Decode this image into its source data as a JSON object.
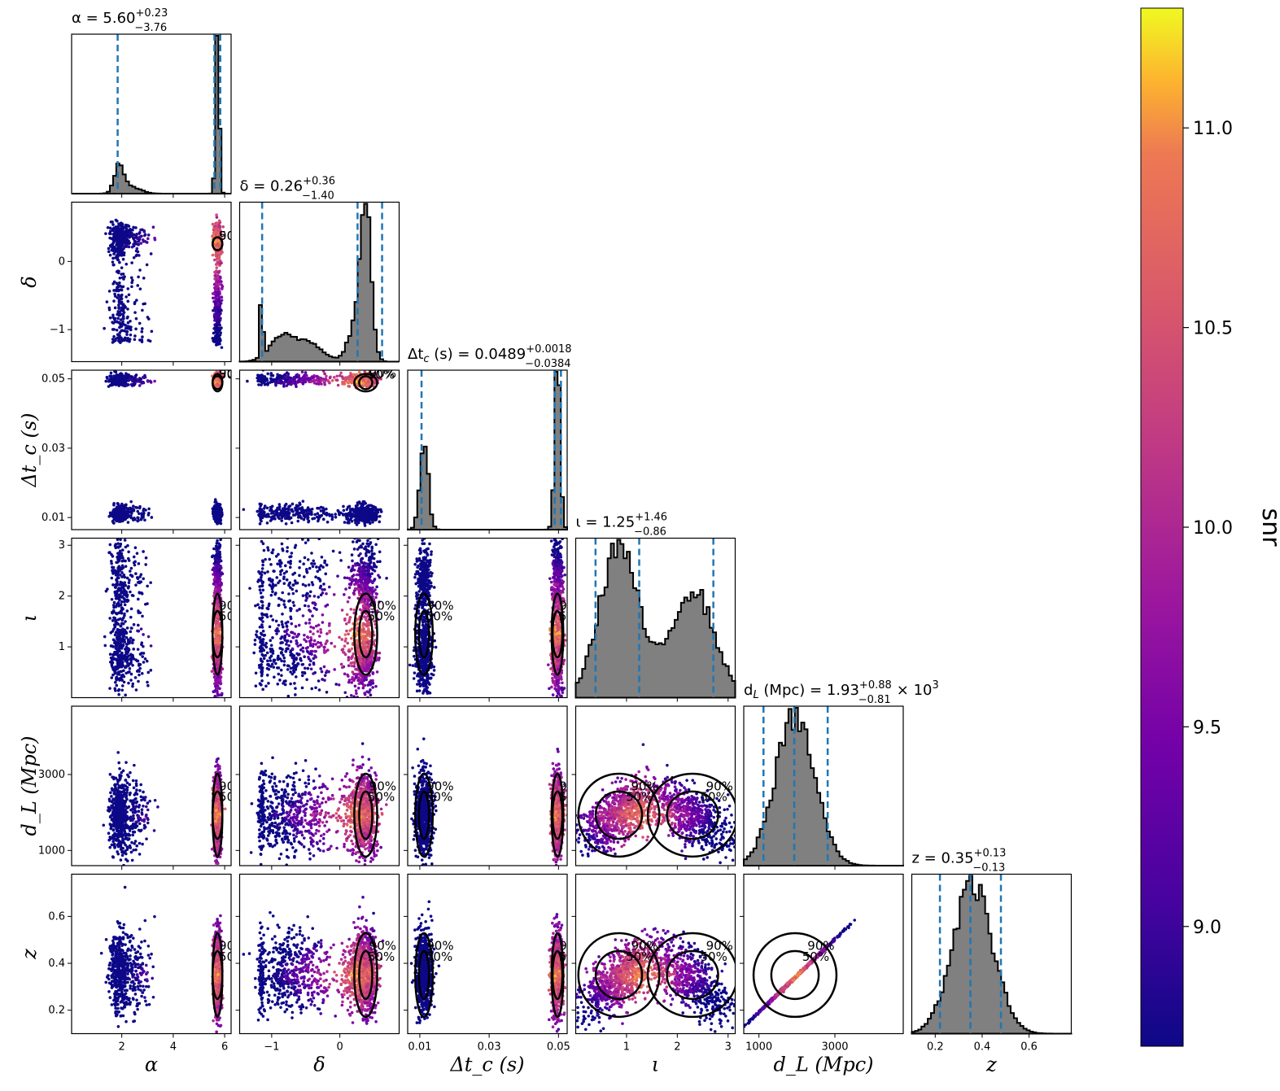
{
  "chart_data": {
    "type": "corner",
    "parameters": [
      {
        "key": "alpha",
        "label": "α",
        "range": [
          0.05,
          6.25
        ],
        "ticks": [
          {
            "v": 2,
            "t": "2"
          },
          {
            "v": 4,
            "t": "4"
          },
          {
            "v": 6,
            "t": "6"
          }
        ],
        "title": "α = 5.60",
        "title_up": "+0.23",
        "title_lo": "−3.76",
        "title_tail": "",
        "median": 5.6,
        "lo": 1.84,
        "hi": 5.83,
        "modes": [
          {
            "c": 1.9,
            "s": 0.18,
            "w": 0.28
          },
          {
            "c": 2.4,
            "s": 0.35,
            "w": 0.12
          },
          {
            "c": 5.72,
            "s": 0.07,
            "w": 0.6
          }
        ]
      },
      {
        "key": "delta",
        "label": "δ",
        "range": [
          -1.47,
          0.87
        ],
        "ticks": [
          {
            "v": -1,
            "t": "−1"
          },
          {
            "v": 0,
            "t": "0"
          }
        ],
        "title": "δ = 0.26",
        "title_up": "+0.36",
        "title_lo": "−1.40",
        "title_tail": "",
        "median": 0.26,
        "lo": -1.14,
        "hi": 0.62,
        "modes": [
          {
            "c": -1.15,
            "s": 0.02,
            "w": 0.06
          },
          {
            "c": -0.85,
            "s": 0.18,
            "w": 0.17
          },
          {
            "c": -0.45,
            "s": 0.2,
            "w": 0.15
          },
          {
            "c": 0.38,
            "s": 0.08,
            "w": 0.5
          },
          {
            "c": 0.2,
            "s": 0.1,
            "w": 0.12
          }
        ]
      },
      {
        "key": "dtc",
        "label": "Δt_c (s)",
        "range": [
          0.0065,
          0.0525
        ],
        "ticks": [
          {
            "v": 0.01,
            "t": "0.01"
          },
          {
            "v": 0.03,
            "t": "0.03"
          },
          {
            "v": 0.05,
            "t": "0.05"
          }
        ],
        "title": "Δt",
        "title_up": "+0.0018",
        "title_lo": "−0.0384",
        "title_tail": "= 0.0489",
        "median": 0.0489,
        "lo": 0.0105,
        "hi": 0.0507,
        "modes": [
          {
            "c": 0.0112,
            "s": 0.0012,
            "w": 0.45
          },
          {
            "c": 0.0497,
            "s": 0.0008,
            "w": 0.55
          }
        ]
      },
      {
        "key": "iota",
        "label": "ι",
        "range": [
          0.0,
          3.14
        ],
        "ticks": [
          {
            "v": 1,
            "t": "1"
          },
          {
            "v": 2,
            "t": "2"
          },
          {
            "v": 3,
            "t": "3"
          }
        ],
        "title": "ι = 1.25",
        "title_up": "+1.46",
        "title_lo": "−0.86",
        "title_tail": "",
        "median": 1.25,
        "lo": 0.39,
        "hi": 2.71,
        "modes": [
          {
            "c": 0.85,
            "s": 0.38,
            "w": 0.56
          },
          {
            "c": 2.3,
            "s": 0.42,
            "w": 0.44
          }
        ]
      },
      {
        "key": "dl",
        "label": "d_L (Mpc)",
        "range": [
          600,
          4800
        ],
        "ticks": [
          {
            "v": 1000,
            "t": "1000"
          },
          {
            "v": 3000,
            "t": "3000"
          }
        ],
        "title": "d",
        "title_up": "+0.88",
        "title_lo": "−0.81",
        "title_tail": "(Mpc) = 1.93",
        "title_mult": "× 10",
        "title_exp": "3",
        "median": 1930,
        "lo": 1120,
        "hi": 2810,
        "modes": [
          {
            "c": 1950,
            "s": 520,
            "w": 1.0
          }
        ]
      },
      {
        "key": "z",
        "label": "z",
        "range": [
          0.1,
          0.78
        ],
        "ticks": [
          {
            "v": 0.2,
            "t": "0.2"
          },
          {
            "v": 0.4,
            "t": "0.4"
          },
          {
            "v": 0.6,
            "t": "0.6"
          }
        ],
        "title": "z = 0.35",
        "title_up": "+0.13",
        "title_lo": "−0.13",
        "title_tail": "",
        "median": 0.35,
        "lo": 0.22,
        "hi": 0.48,
        "modes": [
          {
            "c": 0.36,
            "s": 0.085,
            "w": 1.0
          }
        ]
      }
    ],
    "contour_levels": [
      "50%",
      "90%"
    ],
    "colorbar": {
      "label": "snr",
      "min": 8.7,
      "max": 11.3,
      "ticks": [
        {
          "v": 9.0,
          "t": "9.0"
        },
        {
          "v": 9.5,
          "t": "9.5"
        },
        {
          "v": 10.0,
          "t": "10.0"
        },
        {
          "v": 10.5,
          "t": "10.5"
        },
        {
          "v": 11.0,
          "t": "11.0"
        }
      ],
      "colormap": "plasma"
    },
    "colors": {
      "hist_fill": "#808080",
      "hist_edge": "#000000",
      "quantile_line": "#1f77b4",
      "contour": "#000000"
    }
  }
}
